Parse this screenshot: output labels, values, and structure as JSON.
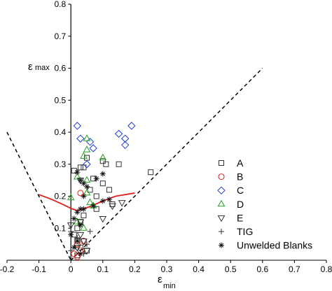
{
  "chart_data": {
    "type": "scatter",
    "title": "",
    "xlabel": {
      "symbol": "ε",
      "subscript": "min"
    },
    "ylabel": {
      "symbol": "ε",
      "subscript": "max"
    },
    "xlim": [
      -0.2,
      0.8
    ],
    "ylim": [
      0,
      0.8
    ],
    "xticks": [
      "-0.2",
      "-0.1",
      "0",
      "0.1",
      "0.2",
      "0.3",
      "0.4",
      "0.5",
      "0.6",
      "0.7",
      "0.8"
    ],
    "yticks": [
      "0.1",
      "0.2",
      "0.3",
      "0.4",
      "0.5",
      "0.6",
      "0.7",
      "0.8"
    ],
    "grid": false,
    "legend_position": "right",
    "reference_lines": [
      {
        "name": "",
        "style": "dashed",
        "color": "#000000",
        "points": [
          [
            -0.2,
            0.4
          ],
          [
            0,
            0
          ]
        ]
      },
      {
        "name": "",
        "style": "dashed",
        "color": "#000000",
        "points": [
          [
            0,
            0
          ],
          [
            0.6,
            0.6
          ]
        ]
      }
    ],
    "curves": [
      {
        "name": "",
        "color": "#e0201b",
        "points": [
          [
            -0.1,
            0.205
          ],
          [
            -0.06,
            0.19
          ],
          [
            -0.02,
            0.172
          ],
          [
            0.0,
            0.162
          ],
          [
            0.02,
            0.155
          ],
          [
            0.04,
            0.16
          ],
          [
            0.07,
            0.172
          ],
          [
            0.1,
            0.185
          ],
          [
            0.14,
            0.2
          ],
          [
            0.2,
            0.21
          ]
        ]
      }
    ],
    "series": [
      {
        "name": "A",
        "marker": "square",
        "color": "#333333",
        "points": [
          [
            0.25,
            0.275
          ],
          [
            0.15,
            0.3
          ],
          [
            0.11,
            0.3
          ],
          [
            0.1,
            0.31
          ],
          [
            0.05,
            0.32
          ],
          [
            0.03,
            0.29
          ],
          [
            0.04,
            0.29
          ],
          [
            0.07,
            0.255
          ],
          [
            0.06,
            0.22
          ],
          [
            0.08,
            0.2
          ],
          [
            0.13,
            0.175
          ],
          [
            0.08,
            0.16
          ],
          [
            0.04,
            0.14
          ],
          [
            0.03,
            0.12
          ],
          [
            0.02,
            0.1
          ],
          [
            0.01,
            0.08
          ],
          [
            0.02,
            0.06
          ],
          [
            0.03,
            0.04
          ],
          [
            0.05,
            0.03
          ],
          [
            0.02,
            0.015
          ],
          [
            0.01,
            0.28
          ],
          [
            0.1,
            0.24
          ],
          [
            0.12,
            0.22
          ]
        ]
      },
      {
        "name": "B",
        "marker": "circle",
        "color": "#e0201b",
        "points": [
          [
            0.03,
            0.21
          ],
          [
            0.02,
            0.05
          ],
          [
            0.03,
            0.03
          ],
          [
            0.01,
            0.02
          ],
          [
            0.02,
            0.01
          ],
          [
            0.04,
            0.06
          ]
        ]
      },
      {
        "name": "C",
        "marker": "diamond",
        "color": "#1f3fd6",
        "points": [
          [
            0.02,
            0.42
          ],
          [
            0.19,
            0.42
          ],
          [
            0.15,
            0.395
          ],
          [
            0.17,
            0.38
          ],
          [
            0.17,
            0.36
          ],
          [
            0.06,
            0.37
          ],
          [
            0.07,
            0.35
          ],
          [
            0.03,
            0.38
          ],
          [
            0.05,
            0.3
          ]
        ]
      },
      {
        "name": "D",
        "marker": "triangle-up",
        "color": "#22a21f",
        "points": [
          [
            0.05,
            0.38
          ],
          [
            0.04,
            0.325
          ],
          [
            0.05,
            0.345
          ],
          [
            0.1,
            0.32
          ],
          [
            0.02,
            0.26
          ],
          [
            0.05,
            0.25
          ],
          [
            0.0,
            0.195
          ],
          [
            0.05,
            0.21
          ],
          [
            0.06,
            0.18
          ],
          [
            0.07,
            0.17
          ],
          [
            0.02,
            0.12
          ],
          [
            0.04,
            0.1
          ]
        ]
      },
      {
        "name": "E",
        "marker": "triangle-down",
        "color": "#333333",
        "points": [
          [
            0.03,
            0.25
          ],
          [
            0.16,
            0.18
          ],
          [
            0.13,
            0.17
          ],
          [
            0.1,
            0.13
          ],
          [
            0.03,
            0.12
          ],
          [
            0.0,
            0.11
          ],
          [
            0.03,
            0.08
          ],
          [
            0.04,
            0.06
          ],
          [
            0.02,
            0.04
          ],
          [
            0.05,
            0.03
          ]
        ]
      },
      {
        "name": "TIG",
        "marker": "plus",
        "color": "#333333",
        "points": [
          [
            0.0,
            0.09
          ],
          [
            0.02,
            0.07
          ],
          [
            0.05,
            0.05
          ],
          [
            0.06,
            0.09
          ],
          [
            0.0,
            0.03
          ],
          [
            0.04,
            0.02
          ]
        ]
      },
      {
        "name": "Unwelded Blanks",
        "marker": "asterisk",
        "color": "#111111",
        "points": [
          [
            0.02,
            0.275
          ],
          [
            0.03,
            0.25
          ],
          [
            0.04,
            0.24
          ],
          [
            0.05,
            0.23
          ],
          [
            0.1,
            0.27
          ],
          [
            0.08,
            0.255
          ],
          [
            0.04,
            0.2
          ],
          [
            0.03,
            0.16
          ],
          [
            0.04,
            0.16
          ],
          [
            0.07,
            0.17
          ],
          [
            0.1,
            0.185
          ],
          [
            0.12,
            0.19
          ],
          [
            0.02,
            0.15
          ],
          [
            0.01,
            0.13
          ],
          [
            0.03,
            0.11
          ],
          [
            0.0,
            0.08
          ],
          [
            0.02,
            0.06
          ],
          [
            0.01,
            0.04
          ],
          [
            0.03,
            0.02
          ]
        ]
      }
    ]
  }
}
